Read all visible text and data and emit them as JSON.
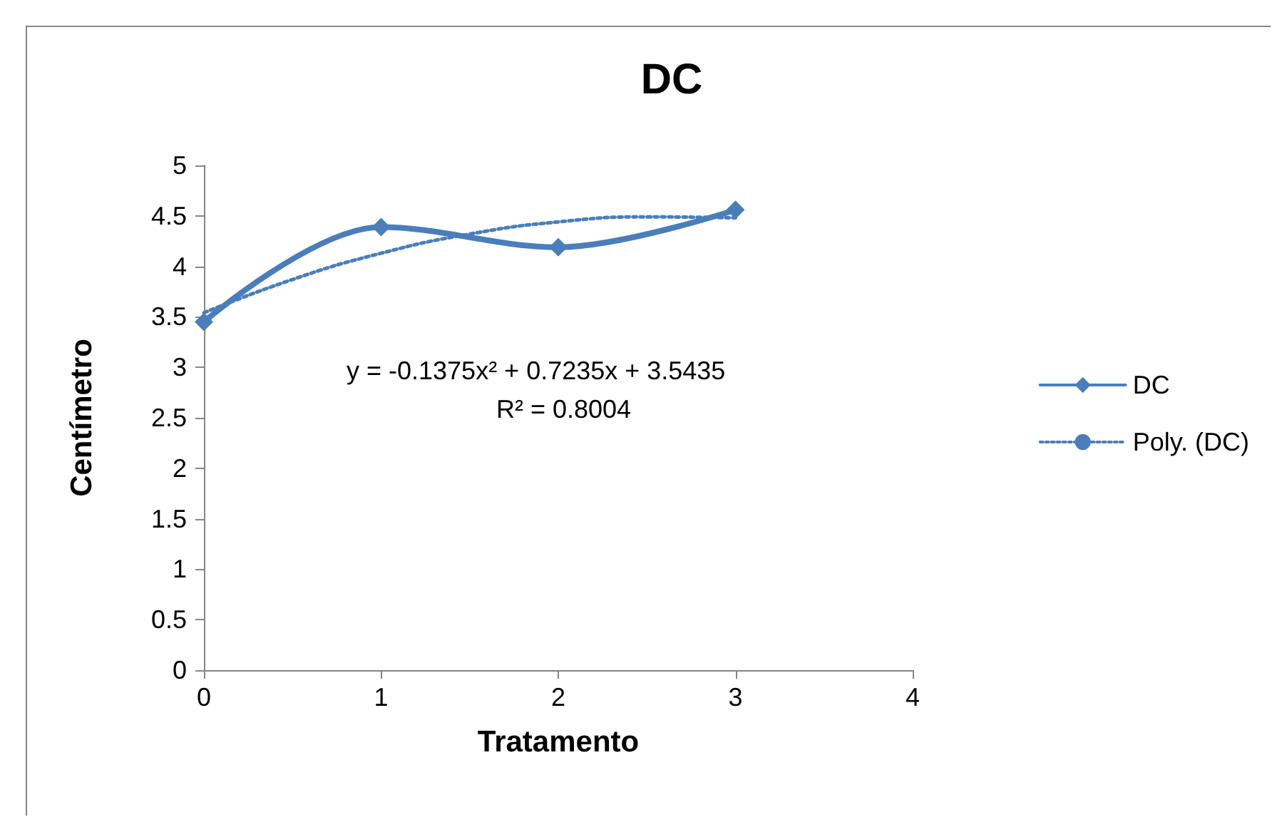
{
  "chart_data": {
    "type": "line",
    "title": "DC",
    "xlabel": "Tratamento",
    "ylabel": "Centímetro",
    "xlim": [
      0,
      4
    ],
    "xticks": [
      0,
      1,
      2,
      3,
      4
    ],
    "ylim": [
      0,
      5
    ],
    "yticks": [
      0,
      0.5,
      1,
      1.5,
      2,
      2.5,
      3,
      3.5,
      4,
      4.5,
      5
    ],
    "series": [
      {
        "name": "DC",
        "color": "#4a7ebb",
        "x": [
          0,
          1,
          2,
          3
        ],
        "values": [
          3.45,
          4.39,
          4.19,
          4.56
        ],
        "marker": "diamond",
        "line_style": "solid"
      },
      {
        "name": "Poly. (DC)",
        "color": "#4a7ebb",
        "x": [
          0,
          0.5,
          1,
          1.5,
          2,
          2.5,
          3
        ],
        "values": [
          3.54,
          3.87,
          4.13,
          4.32,
          4.44,
          4.49,
          4.48
        ],
        "marker": "none",
        "line_style": "dotted"
      }
    ],
    "annotations": [
      "y = -0.1375x² + 0.7235x + 3.5435",
      "R² = 0.8004"
    ],
    "legend": "right",
    "grid": false
  }
}
